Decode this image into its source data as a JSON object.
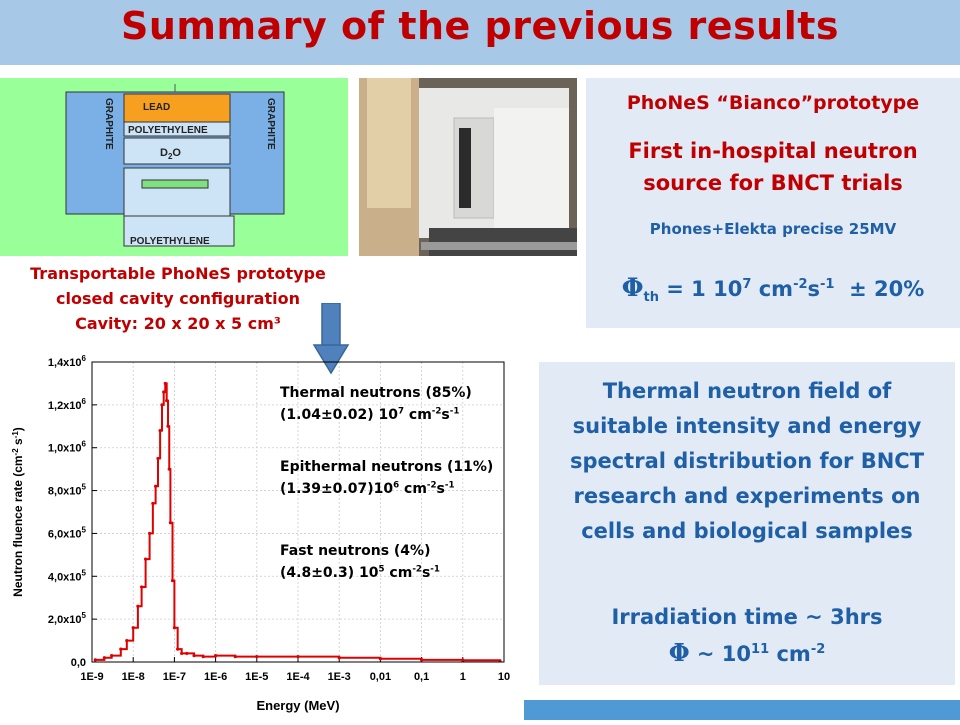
{
  "slide": {
    "title": "Summary of the previous results"
  },
  "schematic": {
    "labels": {
      "lead": "LEAD",
      "polyethylene_top": "POLYETHYLENE",
      "d2o_prefix": "D",
      "d2o_sub": "2",
      "d2o_suffix": "O",
      "graphite_left": "GRAPHITE",
      "graphite_right": "GRAPHITE",
      "polyethylene_bottom": "POLYETHYLENE"
    }
  },
  "caption": {
    "line1": "Transportable PhoNeS prototype",
    "line2": "closed cavity configuration",
    "line3": "Cavity: 20 x 20 x 5 cm³"
  },
  "info_box": {
    "heading": "PhoNeS “Bianco”prototype",
    "subtitle_line1": "First in-hospital neutron",
    "subtitle_line2": "source for BNCT trials",
    "device": "Phones+Elekta precise 25MV",
    "flux_symbol": "Φ",
    "flux_sub": "th",
    "flux_text": " = 1 10",
    "flux_exp": "7",
    "flux_unit1": " cm",
    "flux_unit1_exp": "-2",
    "flux_unit2": "s",
    "flux_unit2_exp": "-1",
    "flux_uncert": "  ± 20%"
  },
  "summary_box": {
    "line1": "Thermal neutron field of",
    "line2": "suitable intensity and energy",
    "line3": "spectral distribution for BNCT",
    "line4": "research and experiments on",
    "line5": "cells and biological samples",
    "irradiation": "Irradiation time ~ 3hrs",
    "fluence_symbol": "Φ",
    "fluence_text": " ~ 10",
    "fluence_exp": "11",
    "fluence_unit": " cm",
    "fluence_unit_exp": "-2"
  },
  "legend": {
    "thermal_label": "Thermal neutrons (85%)",
    "thermal_value": "(1.04±0.02) 10",
    "thermal_exp": "7",
    "epithermal_label": "Epithermal neutrons (11%)",
    "epithermal_value": "(1.39±0.07)10",
    "epithermal_exp": "6",
    "fast_label": "Fast  neutrons (4%)",
    "fast_value": "(4.8±0.3) 10",
    "fast_exp": "5",
    "unit_cm": " cm",
    "unit_cm_exp": "-2",
    "unit_s": "s",
    "unit_s_exp": "-1"
  },
  "chart_data": {
    "type": "line",
    "xlabel": "Energy (MeV)",
    "ylabel_base": "Neutron fluence rate (cm",
    "ylabel_exp": "-2",
    "ylabel_mid": " s",
    "ylabel_exp2": "-1",
    "ylabel_end": ")",
    "x_scale": "log",
    "xlim": [
      1e-09,
      10
    ],
    "ylim": [
      0,
      1400000
    ],
    "x_ticks": [
      "1E-9",
      "1E-8",
      "1E-7",
      "1E-6",
      "1E-5",
      "1E-4",
      "1E-3",
      "0,01",
      "0,1",
      "1",
      "10"
    ],
    "y_tick_mantissa": [
      "0,0",
      "2,0x10",
      "4,0x10",
      "6,0x10",
      "8,0x10",
      "1,0x10",
      "1,2x10",
      "1,4x10"
    ],
    "y_tick_exp": [
      "",
      "5",
      "5",
      "5",
      "5",
      "6",
      "6",
      "6"
    ],
    "grid": true,
    "series": [
      {
        "color": "#e00000",
        "x": [
          1.2e-09,
          2e-09,
          3e-09,
          5e-09,
          7e-09,
          1e-08,
          1.3e-08,
          1.6e-08,
          2e-08,
          2.5e-08,
          3e-08,
          3.5e-08,
          4e-08,
          4.5e-08,
          5e-08,
          5.5e-08,
          6e-08,
          6.5e-08,
          7e-08,
          7.5e-08,
          8e-08,
          9e-08,
          1e-07,
          1.2e-07,
          1.5e-07,
          2e-07,
          3e-07,
          5e-07,
          1e-06,
          3e-06,
          1e-05,
          0.0001,
          0.001,
          0.01,
          0.1,
          1,
          8
        ],
        "y": [
          10000,
          20000,
          30000,
          60000,
          100000,
          160000,
          260000,
          350000,
          480000,
          600000,
          740000,
          820000,
          950000,
          1080000,
          1200000,
          1260000,
          1300000,
          1220000,
          1100000,
          900000,
          650000,
          380000,
          160000,
          60000,
          40000,
          40000,
          30000,
          25000,
          30000,
          25000,
          25000,
          25000,
          20000,
          15000,
          10000,
          8000,
          5000
        ]
      }
    ]
  }
}
